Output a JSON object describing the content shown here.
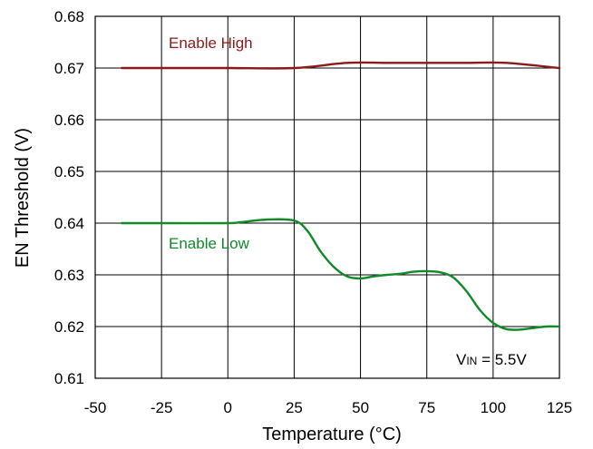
{
  "chart_data": {
    "type": "line",
    "title": "",
    "xlabel": "Temperature (°C)",
    "ylabel": "EN Threshold (V)",
    "xlim": [
      -50,
      125
    ],
    "ylim": [
      0.61,
      0.68
    ],
    "x_ticks": [
      -50,
      -25,
      0,
      25,
      50,
      75,
      100,
      125
    ],
    "x_tick_labels": [
      "-50",
      "-25",
      "0",
      "25",
      "50",
      "75",
      "100",
      "125"
    ],
    "y_ticks": [
      0.61,
      0.62,
      0.63,
      0.64,
      0.65,
      0.66,
      0.67,
      0.68
    ],
    "y_tick_labels": [
      "0.61",
      "0.62",
      "0.63",
      "0.64",
      "0.65",
      "0.66",
      "0.67",
      "0.68"
    ],
    "grid": true,
    "series": [
      {
        "name": "Enable High",
        "color": "#8b1a1a",
        "x": [
          -40,
          -25,
          0,
          25,
          45,
          60,
          75,
          90,
          105,
          125
        ],
        "y": [
          0.67,
          0.67,
          0.67,
          0.67,
          0.671,
          0.671,
          0.671,
          0.671,
          0.671,
          0.67
        ]
      },
      {
        "name": "Enable Low",
        "color": "#118a2a",
        "x": [
          -40,
          -25,
          0,
          5,
          15,
          25,
          30,
          35,
          40,
          45,
          50,
          55,
          60,
          65,
          70,
          75,
          80,
          85,
          90,
          95,
          100,
          105,
          110,
          115,
          120,
          125
        ],
        "y": [
          0.64,
          0.64,
          0.64,
          0.6402,
          0.6407,
          0.6405,
          0.6385,
          0.6345,
          0.6315,
          0.6297,
          0.6293,
          0.6297,
          0.63,
          0.6302,
          0.6306,
          0.6307,
          0.6305,
          0.6295,
          0.6268,
          0.6232,
          0.6207,
          0.6195,
          0.6194,
          0.6197,
          0.62,
          0.62
        ]
      }
    ],
    "annotations": {
      "enable_high": "Enable High",
      "enable_low": "Enable Low",
      "vin_prefix": "V",
      "vin_subscript": "IN",
      "vin_value": " = 5.5V"
    }
  }
}
